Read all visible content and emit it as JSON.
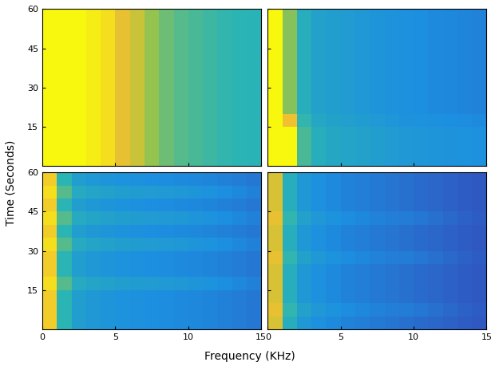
{
  "xlabel": "Frequency (KHz)",
  "ylabel": "Time (Seconds)",
  "chart_data": [
    {
      "type": "heatmap",
      "xlim": [
        0,
        15
      ],
      "ylim": [
        0,
        60
      ],
      "xticks": [
        0,
        5,
        10,
        15
      ],
      "yticks": [
        15,
        30,
        45,
        60
      ],
      "zlim": [
        0,
        1
      ],
      "tick_labels": "y",
      "cells": [
        [
          1,
          1,
          1,
          0.98,
          0.95,
          0.88,
          0.82,
          0.72,
          0.66,
          0.62,
          0.6,
          0.58,
          0.56,
          0.55,
          0.54
        ],
        [
          1,
          1,
          1,
          0.98,
          0.95,
          0.88,
          0.82,
          0.72,
          0.66,
          0.62,
          0.6,
          0.58,
          0.56,
          0.55,
          0.54
        ],
        [
          1,
          1,
          1,
          0.98,
          0.95,
          0.88,
          0.82,
          0.72,
          0.66,
          0.62,
          0.6,
          0.58,
          0.56,
          0.55,
          0.54
        ],
        [
          1,
          1,
          1,
          0.98,
          0.95,
          0.88,
          0.82,
          0.72,
          0.66,
          0.62,
          0.6,
          0.58,
          0.56,
          0.55,
          0.54
        ],
        [
          1,
          1,
          1,
          0.98,
          0.95,
          0.88,
          0.82,
          0.72,
          0.66,
          0.62,
          0.6,
          0.58,
          0.56,
          0.55,
          0.54
        ],
        [
          1,
          1,
          1,
          0.98,
          0.95,
          0.88,
          0.82,
          0.72,
          0.66,
          0.62,
          0.6,
          0.58,
          0.56,
          0.55,
          0.54
        ],
        [
          1,
          1,
          1,
          0.98,
          0.95,
          0.88,
          0.82,
          0.72,
          0.66,
          0.62,
          0.6,
          0.58,
          0.56,
          0.55,
          0.54
        ],
        [
          1,
          1,
          1,
          0.98,
          0.95,
          0.88,
          0.82,
          0.72,
          0.66,
          0.62,
          0.6,
          0.58,
          0.56,
          0.55,
          0.54
        ],
        [
          1,
          1,
          1,
          0.98,
          0.95,
          0.88,
          0.82,
          0.72,
          0.66,
          0.62,
          0.6,
          0.58,
          0.56,
          0.55,
          0.54
        ],
        [
          1,
          1,
          1,
          0.98,
          0.95,
          0.88,
          0.82,
          0.72,
          0.66,
          0.62,
          0.6,
          0.58,
          0.56,
          0.55,
          0.54
        ],
        [
          1,
          1,
          1,
          0.98,
          0.95,
          0.88,
          0.82,
          0.72,
          0.66,
          0.62,
          0.6,
          0.58,
          0.56,
          0.55,
          0.54
        ],
        [
          1,
          1,
          1,
          0.98,
          0.95,
          0.88,
          0.82,
          0.72,
          0.66,
          0.62,
          0.6,
          0.58,
          0.56,
          0.55,
          0.54
        ]
      ]
    },
    {
      "type": "heatmap",
      "xlim": [
        0,
        15
      ],
      "ylim": [
        0,
        60
      ],
      "xticks": [
        0,
        5,
        10,
        15
      ],
      "yticks": [
        15,
        30,
        45,
        60
      ],
      "zlim": [
        0,
        1
      ],
      "tick_labels": false,
      "cells": [
        [
          1,
          1,
          0.6,
          0.5,
          0.46,
          0.44,
          0.42,
          0.4,
          0.38,
          0.36,
          0.35,
          0.34,
          0.33,
          0.32,
          0.31
        ],
        [
          1,
          1,
          0.6,
          0.5,
          0.46,
          0.44,
          0.42,
          0.4,
          0.38,
          0.36,
          0.35,
          0.34,
          0.33,
          0.32,
          0.31
        ],
        [
          1,
          1,
          0.6,
          0.5,
          0.46,
          0.44,
          0.42,
          0.4,
          0.38,
          0.36,
          0.35,
          0.34,
          0.33,
          0.32,
          0.31
        ],
        [
          1,
          0.9,
          0.56,
          0.46,
          0.43,
          0.41,
          0.39,
          0.37,
          0.35,
          0.33,
          0.32,
          0.31,
          0.3,
          0.29,
          0.28
        ],
        [
          1,
          0.7,
          0.5,
          0.42,
          0.4,
          0.38,
          0.36,
          0.34,
          0.33,
          0.31,
          0.3,
          0.28,
          0.27,
          0.26,
          0.25
        ],
        [
          1,
          0.7,
          0.5,
          0.42,
          0.4,
          0.38,
          0.36,
          0.34,
          0.33,
          0.31,
          0.3,
          0.28,
          0.27,
          0.26,
          0.25
        ],
        [
          1,
          0.7,
          0.5,
          0.42,
          0.4,
          0.38,
          0.36,
          0.34,
          0.33,
          0.31,
          0.3,
          0.28,
          0.27,
          0.26,
          0.25
        ],
        [
          1,
          0.7,
          0.5,
          0.42,
          0.4,
          0.38,
          0.36,
          0.34,
          0.33,
          0.31,
          0.3,
          0.28,
          0.27,
          0.26,
          0.25
        ],
        [
          1,
          0.7,
          0.5,
          0.42,
          0.4,
          0.38,
          0.36,
          0.34,
          0.33,
          0.31,
          0.3,
          0.28,
          0.27,
          0.26,
          0.25
        ],
        [
          1,
          0.7,
          0.5,
          0.42,
          0.4,
          0.38,
          0.36,
          0.34,
          0.33,
          0.31,
          0.3,
          0.28,
          0.27,
          0.26,
          0.25
        ],
        [
          1,
          0.7,
          0.5,
          0.42,
          0.4,
          0.38,
          0.36,
          0.34,
          0.33,
          0.31,
          0.3,
          0.28,
          0.27,
          0.26,
          0.25
        ],
        [
          1,
          0.7,
          0.5,
          0.42,
          0.4,
          0.38,
          0.36,
          0.34,
          0.33,
          0.31,
          0.3,
          0.28,
          0.27,
          0.26,
          0.25
        ]
      ]
    },
    {
      "type": "heatmap",
      "xlim": [
        0,
        15
      ],
      "ylim": [
        0,
        60
      ],
      "xticks": [
        0,
        5,
        10,
        15
      ],
      "yticks": [
        15,
        30,
        45,
        60
      ],
      "zlim": [
        0,
        1
      ],
      "tick_labels": true,
      "cells": [
        [
          0.92,
          0.55,
          0.4,
          0.36,
          0.34,
          0.32,
          0.31,
          0.3,
          0.29,
          0.28,
          0.27,
          0.26,
          0.24,
          0.22,
          0.2
        ],
        [
          0.92,
          0.55,
          0.4,
          0.36,
          0.34,
          0.32,
          0.31,
          0.3,
          0.29,
          0.28,
          0.27,
          0.26,
          0.24,
          0.22,
          0.2
        ],
        [
          0.92,
          0.55,
          0.4,
          0.36,
          0.34,
          0.32,
          0.31,
          0.3,
          0.29,
          0.28,
          0.27,
          0.26,
          0.24,
          0.22,
          0.2
        ],
        [
          0.95,
          0.62,
          0.48,
          0.44,
          0.42,
          0.4,
          0.39,
          0.38,
          0.37,
          0.36,
          0.34,
          0.32,
          0.3,
          0.27,
          0.24
        ],
        [
          0.92,
          0.55,
          0.4,
          0.36,
          0.34,
          0.32,
          0.31,
          0.3,
          0.29,
          0.28,
          0.27,
          0.26,
          0.24,
          0.22,
          0.2
        ],
        [
          0.92,
          0.55,
          0.4,
          0.36,
          0.34,
          0.32,
          0.31,
          0.3,
          0.29,
          0.28,
          0.27,
          0.26,
          0.24,
          0.22,
          0.2
        ],
        [
          0.95,
          0.62,
          0.48,
          0.44,
          0.42,
          0.4,
          0.39,
          0.38,
          0.37,
          0.36,
          0.34,
          0.32,
          0.3,
          0.27,
          0.24
        ],
        [
          0.92,
          0.55,
          0.4,
          0.36,
          0.34,
          0.32,
          0.31,
          0.3,
          0.29,
          0.28,
          0.27,
          0.26,
          0.24,
          0.22,
          0.2
        ],
        [
          0.95,
          0.62,
          0.48,
          0.44,
          0.42,
          0.4,
          0.39,
          0.38,
          0.37,
          0.36,
          0.34,
          0.32,
          0.3,
          0.27,
          0.24
        ],
        [
          0.92,
          0.55,
          0.4,
          0.36,
          0.34,
          0.32,
          0.31,
          0.3,
          0.29,
          0.28,
          0.27,
          0.26,
          0.24,
          0.22,
          0.2
        ],
        [
          0.95,
          0.62,
          0.48,
          0.44,
          0.42,
          0.4,
          0.39,
          0.38,
          0.37,
          0.36,
          0.34,
          0.32,
          0.3,
          0.27,
          0.24
        ],
        [
          0.92,
          0.55,
          0.4,
          0.36,
          0.34,
          0.32,
          0.31,
          0.3,
          0.29,
          0.28,
          0.27,
          0.26,
          0.24,
          0.22,
          0.2
        ]
      ]
    },
    {
      "type": "heatmap",
      "xlim": [
        0,
        15
      ],
      "ylim": [
        0,
        60
      ],
      "xticks": [
        0,
        5,
        10,
        15
      ],
      "yticks": [
        15,
        30,
        45,
        60
      ],
      "zlim": [
        0,
        1
      ],
      "tick_labels": "x",
      "cells": [
        [
          0.85,
          0.5,
          0.36,
          0.31,
          0.28,
          0.25,
          0.23,
          0.21,
          0.19,
          0.17,
          0.15,
          0.13,
          0.11,
          0.09,
          0.07
        ],
        [
          0.88,
          0.56,
          0.42,
          0.36,
          0.32,
          0.29,
          0.27,
          0.25,
          0.23,
          0.22,
          0.2,
          0.17,
          0.14,
          0.11,
          0.09
        ],
        [
          0.85,
          0.5,
          0.36,
          0.31,
          0.28,
          0.25,
          0.23,
          0.21,
          0.19,
          0.17,
          0.15,
          0.13,
          0.11,
          0.09,
          0.07
        ],
        [
          0.85,
          0.5,
          0.36,
          0.31,
          0.28,
          0.25,
          0.23,
          0.21,
          0.19,
          0.17,
          0.15,
          0.13,
          0.11,
          0.09,
          0.07
        ],
        [
          0.85,
          0.5,
          0.36,
          0.31,
          0.28,
          0.25,
          0.23,
          0.21,
          0.19,
          0.17,
          0.15,
          0.13,
          0.11,
          0.09,
          0.07
        ],
        [
          0.88,
          0.56,
          0.42,
          0.36,
          0.32,
          0.29,
          0.27,
          0.25,
          0.23,
          0.22,
          0.2,
          0.17,
          0.14,
          0.11,
          0.09
        ],
        [
          0.85,
          0.5,
          0.36,
          0.31,
          0.28,
          0.25,
          0.23,
          0.21,
          0.19,
          0.17,
          0.15,
          0.13,
          0.11,
          0.09,
          0.07
        ],
        [
          0.85,
          0.5,
          0.36,
          0.31,
          0.28,
          0.25,
          0.23,
          0.21,
          0.19,
          0.17,
          0.15,
          0.13,
          0.11,
          0.09,
          0.07
        ],
        [
          0.88,
          0.56,
          0.42,
          0.36,
          0.32,
          0.29,
          0.27,
          0.25,
          0.23,
          0.22,
          0.2,
          0.17,
          0.14,
          0.11,
          0.09
        ],
        [
          0.85,
          0.5,
          0.36,
          0.31,
          0.28,
          0.25,
          0.23,
          0.21,
          0.19,
          0.17,
          0.15,
          0.13,
          0.11,
          0.09,
          0.07
        ],
        [
          0.85,
          0.5,
          0.36,
          0.31,
          0.28,
          0.25,
          0.23,
          0.21,
          0.19,
          0.17,
          0.15,
          0.13,
          0.11,
          0.09,
          0.07
        ],
        [
          0.85,
          0.5,
          0.36,
          0.31,
          0.28,
          0.25,
          0.23,
          0.21,
          0.19,
          0.17,
          0.15,
          0.13,
          0.11,
          0.09,
          0.07
        ]
      ]
    }
  ]
}
